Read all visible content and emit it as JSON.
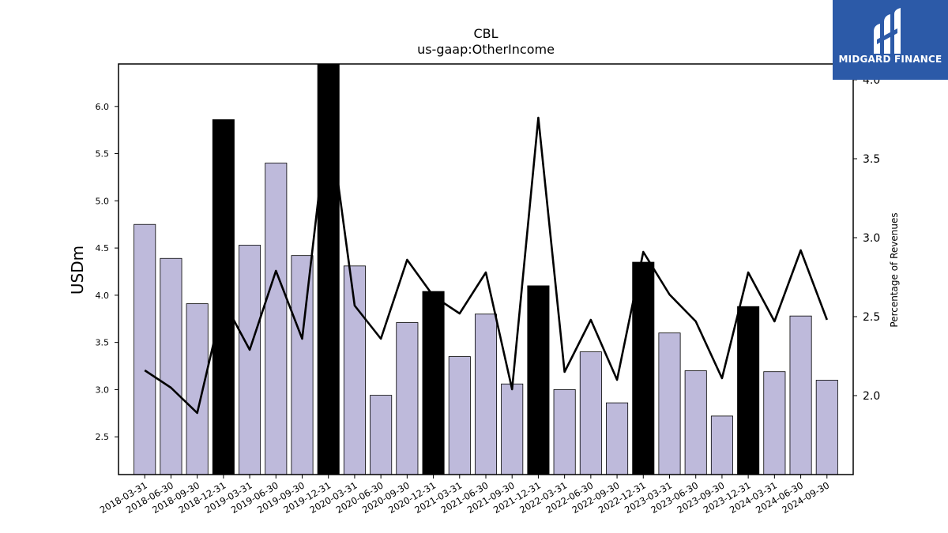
{
  "chart_data": {
    "type": "bar",
    "title": "CBL",
    "subtitle": "us-gaap:OtherIncome",
    "ylabel": "USDm",
    "y2label": "Percentage of Revenues",
    "ylim": [
      2.1,
      6.45
    ],
    "y2lim": [
      1.5,
      4.1
    ],
    "yticks": [
      "2.5",
      "3.0",
      "3.5",
      "4.0",
      "4.5",
      "5.0",
      "5.5",
      "6.0"
    ],
    "y2ticks": [
      "2.0",
      "2.5",
      "3.0",
      "3.5",
      "4.0"
    ],
    "categories": [
      "2018-03-31",
      "2018-06-30",
      "2018-09-30",
      "2018-12-31",
      "2019-03-31",
      "2019-06-30",
      "2019-09-30",
      "2019-12-31",
      "2020-03-31",
      "2020-06-30",
      "2020-09-30",
      "2020-12-31",
      "2021-03-31",
      "2021-06-30",
      "2021-09-30",
      "2021-12-31",
      "2022-03-31",
      "2022-06-30",
      "2022-09-30",
      "2022-12-31",
      "2023-03-31",
      "2023-06-30",
      "2023-09-30",
      "2023-12-31",
      "2024-03-31",
      "2024-06-30",
      "2024-09-30"
    ],
    "series": [
      {
        "type": "bar",
        "values": [
          4.75,
          4.39,
          3.91,
          5.86,
          4.53,
          5.4,
          4.42,
          6.45,
          4.31,
          2.94,
          3.71,
          4.04,
          3.35,
          3.8,
          3.06,
          4.1,
          3.0,
          3.4,
          2.86,
          4.35,
          3.6,
          3.2,
          2.72,
          3.88,
          3.19,
          3.78,
          3.1
        ],
        "highlight": [
          false,
          false,
          false,
          true,
          false,
          false,
          false,
          true,
          false,
          false,
          false,
          true,
          false,
          false,
          false,
          true,
          false,
          false,
          false,
          true,
          false,
          false,
          false,
          true,
          false,
          false,
          false
        ]
      },
      {
        "type": "line",
        "axis": "right",
        "values": [
          2.16,
          2.05,
          1.89,
          2.6,
          2.29,
          2.79,
          2.36,
          3.8,
          2.57,
          2.36,
          2.86,
          2.63,
          2.52,
          2.78,
          2.04,
          3.76,
          2.15,
          2.48,
          2.1,
          2.91,
          2.64,
          2.47,
          2.11,
          2.78,
          2.47,
          2.92,
          2.48
        ]
      }
    ],
    "colors": {
      "bar": "#bebadb",
      "highlight_bar": "#000000",
      "line": "#000000",
      "edge": "#000000"
    },
    "grid": false,
    "legend": "none"
  },
  "logo": {
    "text": "MIDGARD FINANCE",
    "color": "#2c5aa8"
  }
}
